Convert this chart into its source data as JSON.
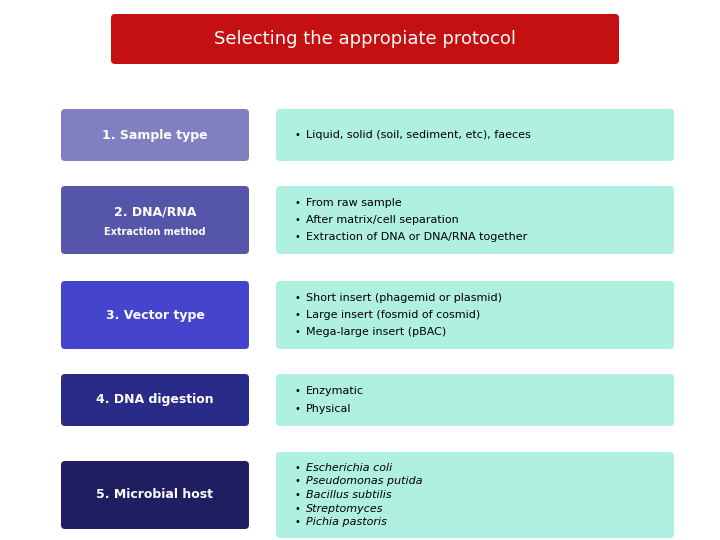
{
  "title": "Selecting the appropiate protocol",
  "title_bg": "#c41010",
  "title_color": "#ffffff",
  "background_color": "#ffffff",
  "left_boxes": [
    {
      "label": "1. Sample type",
      "sublabel": "",
      "color": "#8080c0"
    },
    {
      "label": "2. DNA/RNA",
      "sublabel": "Extraction method",
      "color": "#5555aa"
    },
    {
      "label": "3. Vector type",
      "sublabel": "",
      "color": "#4444cc"
    },
    {
      "label": "4. DNA digestion",
      "sublabel": "",
      "color": "#2a2a88"
    },
    {
      "label": "5. Microbial host",
      "sublabel": "",
      "color": "#1e1e60"
    }
  ],
  "right_boxes": [
    {
      "lines": [
        "Liquid, solid (soil, sediment, etc), faeces"
      ],
      "italic": false
    },
    {
      "lines": [
        "From raw sample",
        "After matrix/cell separation",
        "Extraction of DNA or DNA/RNA together"
      ],
      "italic": false
    },
    {
      "lines": [
        "Short insert (phagemid or plasmid)",
        "Large insert (fosmid of cosmid)",
        "Mega-large insert (pBAC)"
      ],
      "italic": false
    },
    {
      "lines": [
        "Enzymatic",
        "Physical"
      ],
      "italic": false
    },
    {
      "lines": [
        "Escherichia coli",
        "Pseudomonas putida",
        "Bacillus subtilis",
        "Streptomyces",
        "Pichia pastoris"
      ],
      "italic": true
    }
  ],
  "right_box_color": "#b0f0e0",
  "left_text_color": "#ffffff",
  "right_text_color": "#000000",
  "bullet": "•"
}
